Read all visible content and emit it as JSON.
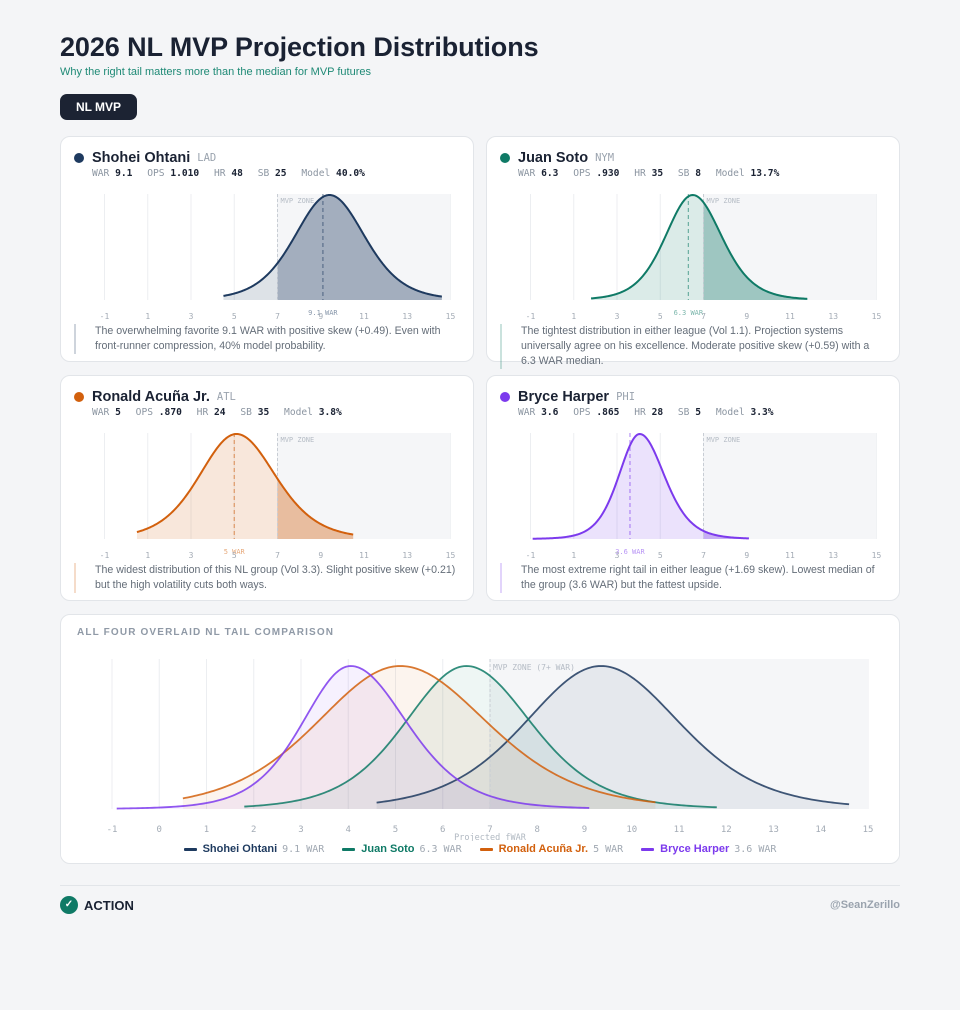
{
  "header": {
    "title": "2026 NL MVP Projection Distributions",
    "subtitle": "Why the right tail matters more than the median for MVP futures"
  },
  "filter": {
    "label": "NL MVP"
  },
  "players": [
    {
      "name": "Shohei Ohtani",
      "team": "LAD",
      "color": "#1e3a5f",
      "stats": [
        {
          "label": "WAR",
          "value": "9.1"
        },
        {
          "label": "OPS",
          "value": "1.010"
        },
        {
          "label": "HR",
          "value": "48"
        },
        {
          "label": "SB",
          "value": "25"
        },
        {
          "label": "Model",
          "value": "40.0%"
        }
      ],
      "description": "The overwhelming favorite 9.1 WAR with positive skew (+0.49). Even with front-runner compression, 40% model probability."
    },
    {
      "name": "Juan Soto",
      "team": "NYM",
      "color": "#0f7a66",
      "stats": [
        {
          "label": "WAR",
          "value": "6.3"
        },
        {
          "label": "OPS",
          "value": ".930"
        },
        {
          "label": "HR",
          "value": "35"
        },
        {
          "label": "SB",
          "value": "8"
        },
        {
          "label": "Model",
          "value": "13.7%"
        }
      ],
      "description": "The tightest distribution in either league (Vol 1.1). Projection systems universally agree on his excellence. Moderate positive skew (+0.59) with a 6.3 WAR median."
    },
    {
      "name": "Ronald Acuña Jr.",
      "team": "ATL",
      "color": "#d2600d",
      "stats": [
        {
          "label": "WAR",
          "value": "5"
        },
        {
          "label": "OPS",
          "value": ".870"
        },
        {
          "label": "HR",
          "value": "24"
        },
        {
          "label": "SB",
          "value": "35"
        },
        {
          "label": "Model",
          "value": "3.8%"
        }
      ],
      "description": "The widest distribution of this NL group (Vol 3.3). Slight positive skew (+0.21) but the high volatility cuts both ways."
    },
    {
      "name": "Bryce Harper",
      "team": "PHI",
      "color": "#7c3aed",
      "stats": [
        {
          "label": "WAR",
          "value": "3.6"
        },
        {
          "label": "OPS",
          "value": ".865"
        },
        {
          "label": "HR",
          "value": "28"
        },
        {
          "label": "SB",
          "value": "5"
        },
        {
          "label": "Model",
          "value": "3.3%"
        }
      ],
      "description": "The most extreme right tail in either league (+1.69 skew). Lowest median of the group (3.6 WAR) but the fattest upside."
    }
  ],
  "overlay": {
    "title": "ALL FOUR OVERLAID NL TAIL COMPARISON",
    "legend": [
      {
        "name": "Shohei Ohtani",
        "value": "9.1 WAR"
      },
      {
        "name": "Juan Soto",
        "value": "6.3 WAR"
      },
      {
        "name": "Ronald Acuña Jr.",
        "value": "5 WAR"
      },
      {
        "name": "Bryce Harper",
        "value": "3.6 WAR"
      }
    ]
  },
  "footer": {
    "action_label": "ACTION",
    "check_glyph": "✓",
    "handle": "@SeanZerillo"
  },
  "chart_data": [
    {
      "type": "area",
      "title": "Shohei Ohtani projected WAR distribution",
      "xlim": [
        -1,
        15
      ],
      "xticks": [
        -1,
        1,
        3,
        5,
        7,
        9,
        11,
        13,
        15
      ],
      "grid": [
        -1,
        1,
        3,
        5,
        7,
        9,
        11,
        13,
        15
      ],
      "zone": {
        "from": 7,
        "to": 15,
        "label": "MVP ZONE"
      },
      "series": [
        {
          "name": "Shohei Ohtani",
          "color": "#1e3a5f",
          "median": 9.1,
          "median_label": "9.1 WAR",
          "mode": 9.4,
          "spread_left": 1.55,
          "spread_right": 1.58,
          "range": [
            4.5,
            14.6
          ]
        }
      ]
    },
    {
      "type": "area",
      "title": "Juan Soto projected WAR distribution",
      "xlim": [
        -1,
        15
      ],
      "xticks": [
        -1,
        1,
        3,
        5,
        7,
        9,
        11,
        13,
        15
      ],
      "grid": [
        -1,
        1,
        3,
        5,
        7,
        9,
        11,
        13,
        15
      ],
      "zone": {
        "from": 7,
        "to": 15,
        "label": "MVP ZONE"
      },
      "series": [
        {
          "name": "Juan Soto",
          "color": "#0f7a66",
          "median": 6.3,
          "median_label": "6.3 WAR",
          "mode": 6.5,
          "spread_left": 1.22,
          "spread_right": 1.3,
          "range": [
            1.8,
            11.8
          ]
        }
      ]
    },
    {
      "type": "area",
      "title": "Ronald Acuña Jr. projected WAR distribution",
      "xlim": [
        -1,
        15
      ],
      "xticks": [
        -1,
        1,
        3,
        5,
        7,
        9,
        11,
        13,
        15
      ],
      "grid": [
        -1,
        1,
        3,
        5,
        7,
        9,
        11,
        13,
        15
      ],
      "zone": {
        "from": 7,
        "to": 15,
        "label": "MVP ZONE"
      },
      "series": [
        {
          "name": "Ronald Acuña Jr.",
          "color": "#d2600d",
          "median": 5,
          "median_label": "5 WAR",
          "mode": 5.1,
          "spread_left": 1.65,
          "spread_right": 1.74,
          "range": [
            0.5,
            10.5
          ]
        }
      ]
    },
    {
      "type": "area",
      "title": "Bryce Harper projected WAR distribution",
      "xlim": [
        -1,
        15
      ],
      "xticks": [
        -1,
        1,
        3,
        5,
        7,
        9,
        11,
        13,
        15
      ],
      "grid": [
        -1,
        1,
        3,
        5,
        7,
        9,
        11,
        13,
        15
      ],
      "zone": {
        "from": 7,
        "to": 15,
        "label": "MVP ZONE"
      },
      "series": [
        {
          "name": "Bryce Harper",
          "color": "#7c3aed",
          "median": 3.6,
          "median_label": "3.6 WAR",
          "mode": 4.05,
          "spread_left": 0.93,
          "spread_right": 1.1,
          "range": [
            -0.9,
            9.1
          ]
        }
      ]
    },
    {
      "type": "area",
      "title": "ALL FOUR OVERLAID NL TAIL COMPARISON",
      "xlabel": "Projected fWAR",
      "ylabel": "",
      "xlim": [
        -1,
        15
      ],
      "xticks": [
        -1,
        0,
        1,
        2,
        3,
        4,
        5,
        6,
        7,
        8,
        9,
        10,
        11,
        12,
        13,
        14,
        15
      ],
      "grid": [
        -1,
        0,
        1,
        2,
        3,
        4,
        5,
        6,
        7,
        8,
        9,
        10,
        11,
        12,
        13,
        14,
        15
      ],
      "zone": {
        "from": 7,
        "to": 15,
        "label": "MVP ZONE (7+ WAR)"
      },
      "legend": "bottom",
      "series": [
        {
          "name": "Shohei Ohtani",
          "color": "#1e3a5f",
          "median": 9.1,
          "mode": 9.35,
          "spread_left": 1.55,
          "spread_right": 1.6,
          "range": [
            4.6,
            14.6
          ]
        },
        {
          "name": "Juan Soto",
          "color": "#0f7a66",
          "median": 6.3,
          "mode": 6.5,
          "spread_left": 1.25,
          "spread_right": 1.32,
          "range": [
            1.8,
            11.8
          ]
        },
        {
          "name": "Ronald Acuña Jr.",
          "color": "#d2600d",
          "median": 5,
          "mode": 5.1,
          "spread_left": 1.7,
          "spread_right": 1.78,
          "range": [
            0.5,
            10.5
          ]
        },
        {
          "name": "Bryce Harper",
          "color": "#7c3aed",
          "median": 3.6,
          "mode": 4.05,
          "spread_left": 0.98,
          "spread_right": 1.15,
          "range": [
            -0.9,
            9.1
          ]
        }
      ]
    }
  ]
}
